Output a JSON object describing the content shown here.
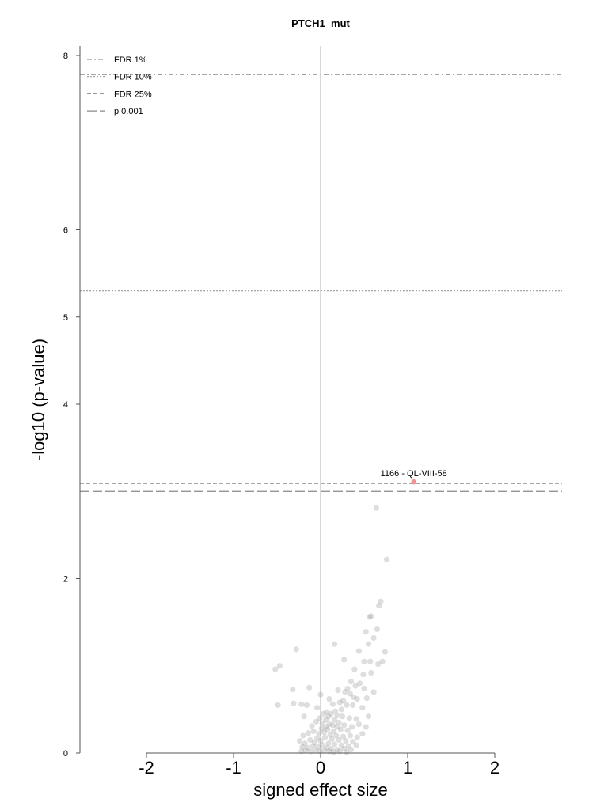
{
  "chart_data": {
    "type": "scatter",
    "title": "PTCH1_mut",
    "xlabel": "signed effect size",
    "ylabel": "-log10 (p-value)",
    "xlim": [
      -2.0,
      2.0
    ],
    "ylim": [
      0,
      8
    ],
    "xticks": [
      "-2",
      "-1",
      "0",
      "1",
      "2"
    ],
    "yticks": [
      "0",
      "2",
      "4",
      "5",
      "6",
      "8"
    ],
    "grid": false,
    "legend_position": "top-left",
    "threshold_lines": [
      {
        "name": "FDR 1%",
        "y": 7.78,
        "style": "dashdot",
        "color": "#999999"
      },
      {
        "name": "FDR 10%",
        "y": 5.3,
        "style": "dotted",
        "color": "#999999"
      },
      {
        "name": "FDR 25%",
        "y": 3.09,
        "style": "dashed",
        "color": "#999999"
      },
      {
        "name": "p 0.001",
        "y": 3.0,
        "style": "longdash",
        "color": "#888888"
      }
    ],
    "vertical_line": {
      "x": 0,
      "color": "#cccccc"
    },
    "highlight": {
      "label": "1166 - QL-VIII-58",
      "x": 1.07,
      "y": 3.11,
      "color": "#f08080"
    },
    "point_color": "#888888",
    "points": [
      [
        0.64,
        2.81
      ],
      [
        0.76,
        2.22
      ],
      [
        0.69,
        1.74
      ],
      [
        0.67,
        1.69
      ],
      [
        0.58,
        1.57
      ],
      [
        0.56,
        1.56
      ],
      [
        0.65,
        1.42
      ],
      [
        0.52,
        1.39
      ],
      [
        0.61,
        1.32
      ],
      [
        0.55,
        1.25
      ],
      [
        0.74,
        1.16
      ],
      [
        0.16,
        1.25
      ],
      [
        -0.28,
        1.19
      ],
      [
        0.44,
        1.17
      ],
      [
        -0.47,
        1.0
      ],
      [
        -0.52,
        0.96
      ],
      [
        0.66,
        1.02
      ],
      [
        0.5,
        1.05
      ],
      [
        0.27,
        1.07
      ],
      [
        0.58,
        0.92
      ],
      [
        0.49,
        0.9
      ],
      [
        0.57,
        1.05
      ],
      [
        0.71,
        1.05
      ],
      [
        0.39,
        0.96
      ],
      [
        0.35,
        0.82
      ],
      [
        0.45,
        0.8
      ],
      [
        0.31,
        0.74
      ],
      [
        0.4,
        0.77
      ],
      [
        0.28,
        0.7
      ],
      [
        0.34,
        0.68
      ],
      [
        0.38,
        0.64
      ],
      [
        0.42,
        0.62
      ],
      [
        0.5,
        0.74
      ],
      [
        0.53,
        0.63
      ],
      [
        0.61,
        0.7
      ],
      [
        0.26,
        0.6
      ],
      [
        0.22,
        0.58
      ],
      [
        0.3,
        0.55
      ],
      [
        0.37,
        0.55
      ],
      [
        0.48,
        0.52
      ],
      [
        0.2,
        0.72
      ],
      [
        -0.13,
        0.75
      ],
      [
        -0.32,
        0.73
      ],
      [
        0.0,
        0.67
      ],
      [
        0.1,
        0.62
      ],
      [
        0.14,
        0.56
      ],
      [
        -0.31,
        0.57
      ],
      [
        -0.22,
        0.56
      ],
      [
        -0.16,
        0.55
      ],
      [
        -0.04,
        0.52
      ],
      [
        -0.49,
        0.55
      ],
      [
        0.07,
        0.47
      ],
      [
        0.12,
        0.45
      ],
      [
        0.19,
        0.43
      ],
      [
        0.25,
        0.42
      ],
      [
        0.33,
        0.4
      ],
      [
        0.41,
        0.39
      ],
      [
        0.55,
        0.42
      ],
      [
        0.16,
        0.38
      ],
      [
        0.21,
        0.35
      ],
      [
        0.06,
        0.38
      ],
      [
        0.02,
        0.34
      ],
      [
        -0.05,
        0.36
      ],
      [
        -0.1,
        0.31
      ],
      [
        0.1,
        0.33
      ],
      [
        0.27,
        0.32
      ],
      [
        0.36,
        0.3
      ],
      [
        0.44,
        0.33
      ],
      [
        0.52,
        0.3
      ],
      [
        0.31,
        0.26
      ],
      [
        0.23,
        0.27
      ],
      [
        0.15,
        0.25
      ],
      [
        0.08,
        0.27
      ],
      [
        0.04,
        0.24
      ],
      [
        -0.02,
        0.22
      ],
      [
        -0.08,
        0.25
      ],
      [
        -0.14,
        0.23
      ],
      [
        -0.2,
        0.2
      ],
      [
        0.11,
        0.21
      ],
      [
        0.18,
        0.2
      ],
      [
        0.26,
        0.19
      ],
      [
        0.34,
        0.2
      ],
      [
        0.42,
        0.18
      ],
      [
        0.48,
        0.22
      ],
      [
        0.05,
        0.18
      ],
      [
        -0.04,
        0.17
      ],
      [
        0.13,
        0.16
      ],
      [
        0.21,
        0.15
      ],
      [
        0.29,
        0.14
      ],
      [
        0.37,
        0.13
      ],
      [
        0.0,
        0.14
      ],
      [
        -0.07,
        0.12
      ],
      [
        -0.12,
        0.15
      ],
      [
        -0.18,
        0.11
      ],
      [
        -0.24,
        0.14
      ],
      [
        0.09,
        0.11
      ],
      [
        0.16,
        0.1
      ],
      [
        0.24,
        0.09
      ],
      [
        0.32,
        0.08
      ],
      [
        0.41,
        0.09
      ],
      [
        0.02,
        0.09
      ],
      [
        -0.03,
        0.07
      ],
      [
        -0.09,
        0.08
      ],
      [
        -0.15,
        0.06
      ],
      [
        -0.21,
        0.07
      ],
      [
        0.07,
        0.06
      ],
      [
        0.12,
        0.05
      ],
      [
        0.19,
        0.04
      ],
      [
        0.27,
        0.05
      ],
      [
        0.35,
        0.04
      ],
      [
        0.04,
        0.03
      ],
      [
        -0.01,
        0.02
      ],
      [
        -0.06,
        0.03
      ],
      [
        -0.11,
        0.02
      ],
      [
        -0.17,
        0.03
      ],
      [
        -0.22,
        0.02
      ],
      [
        0.1,
        0.02
      ],
      [
        0.15,
        0.01
      ],
      [
        0.22,
        0.02
      ],
      [
        0.3,
        0.01
      ],
      [
        0.06,
        0.3
      ],
      [
        0.01,
        0.28
      ],
      [
        0.19,
        0.3
      ],
      [
        0.14,
        0.32
      ],
      [
        -0.01,
        0.4
      ],
      [
        0.09,
        0.42
      ],
      [
        0.03,
        0.45
      ],
      [
        0.17,
        0.48
      ],
      [
        0.24,
        0.5
      ],
      [
        -0.19,
        0.42
      ]
    ]
  }
}
